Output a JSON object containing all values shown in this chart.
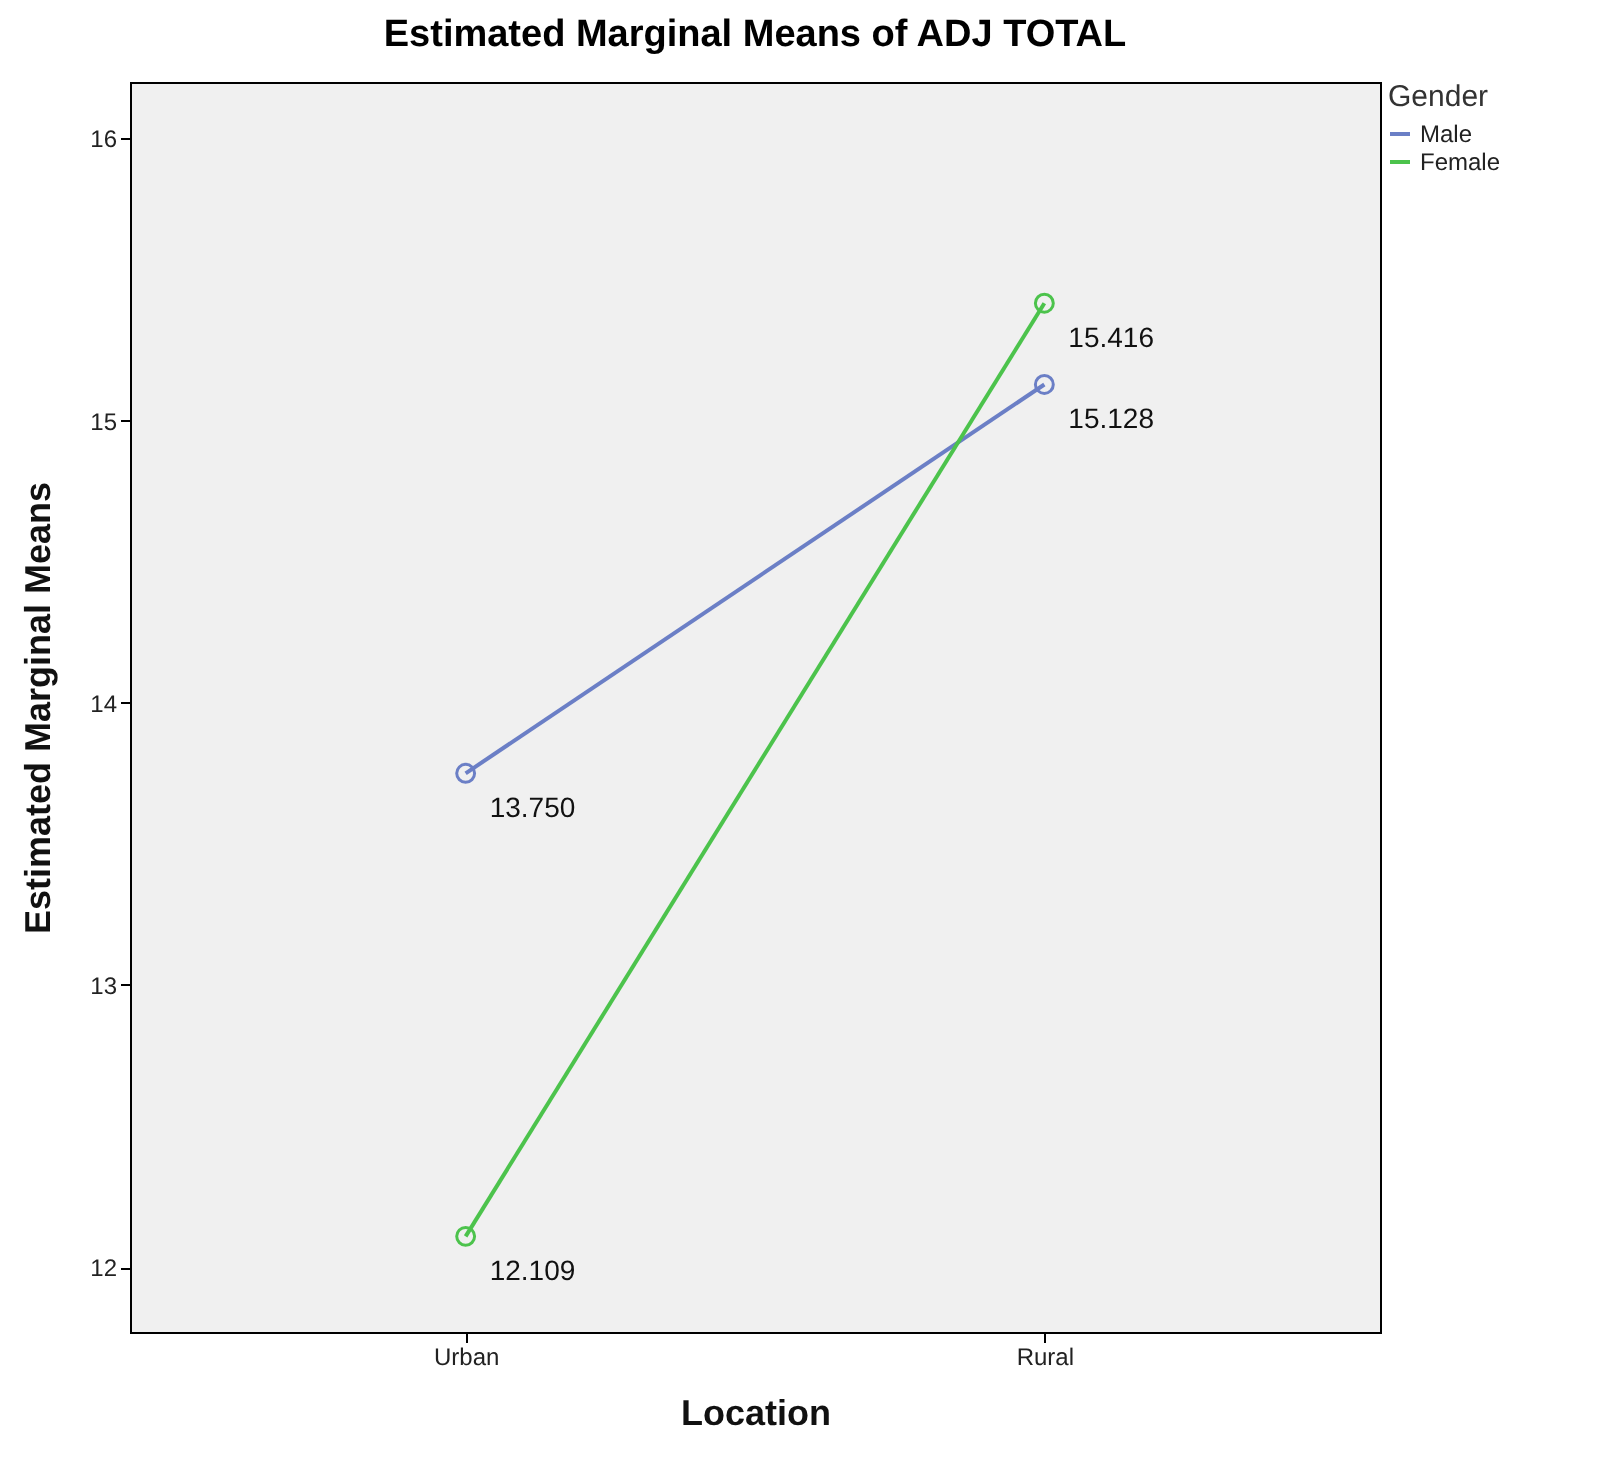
{
  "chart_data": {
    "type": "line",
    "title": "Estimated Marginal Means of ADJ TOTAL",
    "xlabel": "Location",
    "ylabel": "Estimated Marginal Means",
    "legend_title": "Gender",
    "categories": [
      "Urban",
      "Rural"
    ],
    "series": [
      {
        "name": "Male",
        "color": "#6b7fc6",
        "values": [
          13.75,
          15.128
        ],
        "value_labels": [
          "13.750",
          "15.128"
        ]
      },
      {
        "name": "Female",
        "color": "#4cc34c",
        "values": [
          12.109,
          15.416
        ],
        "value_labels": [
          "12.109",
          "15.416"
        ]
      }
    ],
    "ylim": [
      11.77,
      16.2
    ],
    "yticks": [
      12,
      13,
      14,
      15,
      16
    ],
    "grid": false,
    "legend": "top right",
    "marker": "circle",
    "line_style": "solid"
  }
}
